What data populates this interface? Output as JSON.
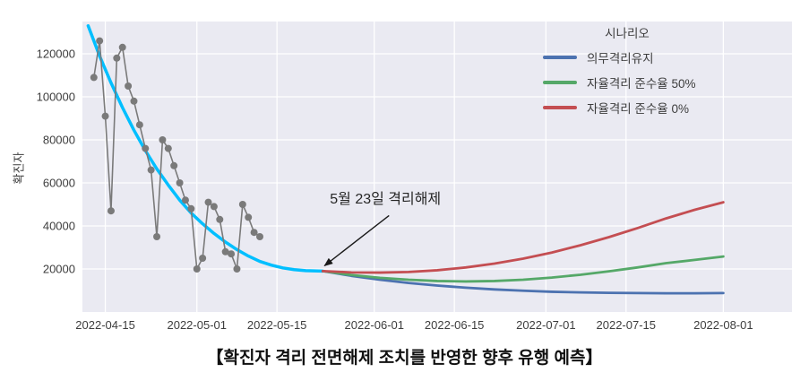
{
  "chart_data": {
    "type": "line",
    "caption": "【확진자 격리 전면해제 조치를 반영한 향후 유행 예측】",
    "ylabel": "확진자",
    "xlabel": "",
    "xlim": [
      "2022-04-11",
      "2022-08-13"
    ],
    "ylim": [
      0,
      135000
    ],
    "y_ticks": [
      20000,
      40000,
      60000,
      80000,
      100000,
      120000
    ],
    "x_ticks": [
      "2022-04-15",
      "2022-05-01",
      "2022-05-15",
      "2022-06-01",
      "2022-06-15",
      "2022-07-01",
      "2022-07-15",
      "2022-08-01"
    ],
    "grid": true,
    "plot_background": "#eaeaf2",
    "grid_color": "#ffffff",
    "legend": {
      "title": "시나리오",
      "position": "upper right"
    },
    "annotation": {
      "text": "5월 23일 격리해제",
      "date": "2022-05-23",
      "value": 19000
    },
    "series": [
      {
        "id": "observed",
        "color": "#7a7a7a",
        "marker": "circle",
        "dates": [
          "2022-04-13",
          "2022-04-14",
          "2022-04-15",
          "2022-04-16",
          "2022-04-17",
          "2022-04-18",
          "2022-04-19",
          "2022-04-20",
          "2022-04-21",
          "2022-04-22",
          "2022-04-23",
          "2022-04-24",
          "2022-04-25",
          "2022-04-26",
          "2022-04-27",
          "2022-04-28",
          "2022-04-29",
          "2022-04-30",
          "2022-05-01",
          "2022-05-02",
          "2022-05-03",
          "2022-05-04",
          "2022-05-05",
          "2022-05-06",
          "2022-05-07",
          "2022-05-08",
          "2022-05-09",
          "2022-05-10",
          "2022-05-11",
          "2022-05-12"
        ],
        "values": [
          109000,
          126000,
          91000,
          47000,
          118000,
          123000,
          105000,
          98000,
          87000,
          76000,
          66000,
          35000,
          80000,
          76000,
          68000,
          60000,
          52000,
          48000,
          20000,
          25000,
          51000,
          49000,
          43000,
          28000,
          27000,
          20000,
          50000,
          44000,
          37000,
          35000
        ]
      },
      {
        "id": "fitted-trend",
        "color": "#00bfff",
        "marker": "none",
        "dates": [
          "2022-04-12",
          "2022-04-14",
          "2022-04-16",
          "2022-04-18",
          "2022-04-20",
          "2022-04-22",
          "2022-04-24",
          "2022-04-26",
          "2022-04-28",
          "2022-04-30",
          "2022-05-02",
          "2022-05-04",
          "2022-05-06",
          "2022-05-08",
          "2022-05-10",
          "2022-05-12",
          "2022-05-14",
          "2022-05-16",
          "2022-05-18",
          "2022-05-20",
          "2022-05-23"
        ],
        "values": [
          133000,
          119000,
          106500,
          95000,
          84500,
          75000,
          66500,
          59000,
          52000,
          46000,
          41000,
          36500,
          32500,
          29000,
          26000,
          23500,
          21800,
          20500,
          19700,
          19200,
          19000
        ]
      },
      {
        "id": "mandatory-isolation",
        "name": "의무격리유지",
        "color": "#4c72b0",
        "marker": "none",
        "dates": [
          "2022-05-23",
          "2022-05-28",
          "2022-06-02",
          "2022-06-07",
          "2022-06-12",
          "2022-06-17",
          "2022-06-22",
          "2022-06-27",
          "2022-07-02",
          "2022-07-07",
          "2022-07-12",
          "2022-07-17",
          "2022-07-22",
          "2022-07-27",
          "2022-08-01"
        ],
        "values": [
          19000,
          16800,
          15000,
          13500,
          12300,
          11300,
          10500,
          9900,
          9400,
          9100,
          8900,
          8800,
          8700,
          8700,
          8800
        ]
      },
      {
        "id": "voluntary-compliance-50",
        "name": "자율격리 준수율 50%",
        "color": "#55a868",
        "marker": "none",
        "dates": [
          "2022-05-23",
          "2022-05-28",
          "2022-06-02",
          "2022-06-07",
          "2022-06-12",
          "2022-06-17",
          "2022-06-22",
          "2022-06-27",
          "2022-07-02",
          "2022-07-07",
          "2022-07-12",
          "2022-07-17",
          "2022-07-22",
          "2022-07-27",
          "2022-08-01"
        ],
        "values": [
          19000,
          17200,
          15900,
          15000,
          14400,
          14200,
          14400,
          15000,
          16000,
          17300,
          18900,
          20700,
          22700,
          24200,
          25800
        ]
      },
      {
        "id": "voluntary-compliance-0",
        "name": "자율격리 준수율 0%",
        "color": "#c44e52",
        "marker": "none",
        "dates": [
          "2022-05-23",
          "2022-05-28",
          "2022-06-02",
          "2022-06-07",
          "2022-06-12",
          "2022-06-17",
          "2022-06-22",
          "2022-06-27",
          "2022-07-02",
          "2022-07-07",
          "2022-07-12",
          "2022-07-17",
          "2022-07-22",
          "2022-07-27",
          "2022-08-01"
        ],
        "values": [
          19000,
          18400,
          18300,
          18600,
          19400,
          20700,
          22500,
          24800,
          27600,
          31000,
          34800,
          39000,
          43500,
          47500,
          51000
        ]
      }
    ]
  }
}
